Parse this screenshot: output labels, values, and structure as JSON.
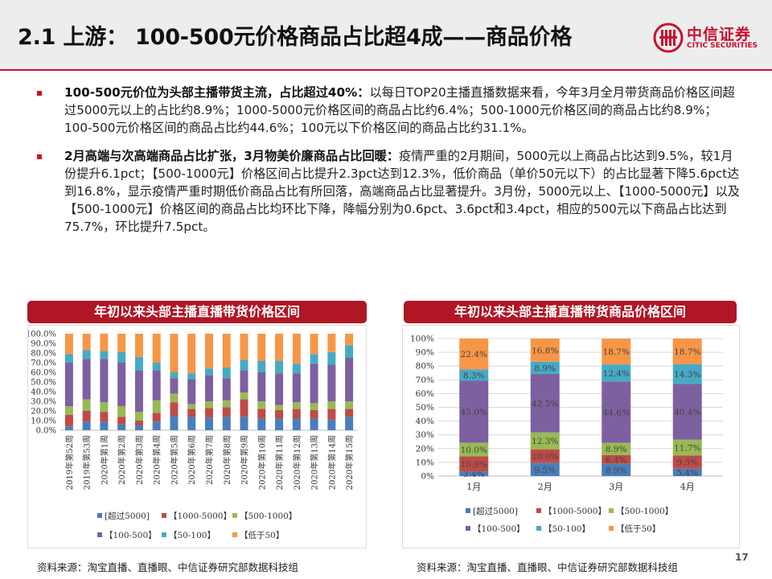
{
  "header": {
    "title": "2.1 上游： 100-500元价格商品占比超4成——商品价格",
    "logo_zh": "中信证券",
    "logo_en": "CITIC SECURITIES"
  },
  "bullets": [
    {
      "bold": "100-500元价位为头部主播带货主流，占比超过40%：",
      "text": "以每日TOP20主播直播数据来看，今年3月全月带货商品价格区间超过5000元以上的占比约8.9%；1000-5000元价格区间的商品占比约6.4%；500-1000元价格区间的商品占比约8.9%；100-500元价格区间的商品占比约44.6%；100元以下价格区间的商品占比约31.1%。"
    },
    {
      "bold": "2月高端与次高端商品占比扩张，3月物美价廉商品占比回暖：",
      "text": "疫情严重的2月期间，5000元以上商品占比达到9.5%，较1月份提升6.1pct；【500-1000元】价格区间占比提升2.3pct达到12.3%，低价商品（单价50元以下）的占比显著下降5.6pct达到16.8%，显示疫情严重时期低价商品占比有所回落，高端商品占比显著提升。3月份，5000元以上、【1000-5000元】以及【500-1000元】价格区间的商品占比均环比下降，降幅分别为0.6pct、3.6pct和3.4pct，相应的500元以下商品占比达到75.7%，环比提升7.5pct。"
    }
  ],
  "colors": {
    "brand": "#c8102e",
    "title_bar": "#b01624",
    "series": [
      "#4a7ebb",
      "#be4b48",
      "#98b954",
      "#7d60a0",
      "#46aac5",
      "#f79646"
    ]
  },
  "chart_left": {
    "title": "年初以来头部主播直播带货价格区间",
    "source": "资料来源：淘宝直播、直播眼、中信证券研究部数据科技组"
  },
  "chart_right": {
    "title": "年初以来头部主播直播带货商品价格区间",
    "source": "资料来源：淘宝直播、直播眼、中信证券研究部数据科技组"
  },
  "page_number": "17",
  "chart_data": [
    {
      "type": "bar",
      "stacked": true,
      "title": "年初以来头部主播直播带货价格区间",
      "categories": [
        "2019年第52周",
        "2019年第53周",
        "2020年第1周",
        "2020年第2周",
        "2020年第3周",
        "2020年第4周",
        "2020年第5周",
        "2020年第6周",
        "2020年第7周",
        "2020年第8周",
        "2020年第9周",
        "2020年第10周",
        "2020年第11周",
        "2020年第12周",
        "2020年第13周",
        "2020年第14周",
        "2020年第15周"
      ],
      "series": [
        {
          "name": "[超过5000]",
          "values": [
            4,
            9,
            9,
            6,
            5,
            9,
            15,
            14,
            13,
            14,
            14,
            12,
            12,
            12,
            12,
            11,
            14
          ]
        },
        {
          "name": "【1000-5000】",
          "values": [
            12,
            11,
            10,
            8,
            5,
            9,
            14,
            8,
            10,
            10,
            18,
            10,
            9,
            10,
            9,
            11,
            8
          ]
        },
        {
          "name": "【500-1000】",
          "values": [
            9,
            12,
            10,
            11,
            9,
            13,
            9,
            5,
            7,
            7,
            7,
            8,
            5,
            7,
            7,
            8,
            8
          ]
        },
        {
          "name": "【100-500】",
          "values": [
            45,
            42,
            45,
            45,
            43,
            31,
            16,
            26,
            27,
            23,
            23,
            30,
            33,
            30,
            41,
            38,
            45
          ]
        },
        {
          "name": "【50-100】",
          "values": [
            9,
            9,
            8,
            11,
            14,
            8,
            6,
            6,
            7,
            11,
            11,
            12,
            13,
            10,
            10,
            13,
            13
          ]
        },
        {
          "name": "【低于50】",
          "values": [
            21,
            17,
            18,
            19,
            24,
            30,
            40,
            41,
            36,
            35,
            27,
            28,
            28,
            31,
            21,
            19,
            12
          ]
        }
      ],
      "yticks": [
        "0.0%",
        "10.0%",
        "20.0%",
        "30.0%",
        "40.0%",
        "50.0%",
        "60.0%",
        "70.0%",
        "80.0%",
        "90.0%",
        "100.0%"
      ],
      "ylim": [
        0,
        100
      ],
      "legend": "bottom"
    },
    {
      "type": "bar",
      "stacked": true,
      "title": "年初以来头部主播直播带货商品价格区间",
      "categories": [
        "1月",
        "2月",
        "3月",
        "4月"
      ],
      "series": [
        {
          "name": "[超过5000]",
          "values": [
            3.4,
            9.5,
            8.9,
            5.4
          ],
          "labels": [
            "3.4%",
            "9.5%",
            "8.9%",
            "5.4%"
          ]
        },
        {
          "name": "【1000-5000】",
          "values": [
            10.9,
            10.0,
            6.4,
            9.5
          ],
          "labels": [
            "10.9%",
            "10.0%",
            "6.4%",
            "9.5%"
          ]
        },
        {
          "name": "【500-1000】",
          "values": [
            10.0,
            12.3,
            8.9,
            11.7
          ],
          "labels": [
            "10.0%",
            "12.3%",
            "8.9%",
            "11.7%"
          ]
        },
        {
          "name": "【100-500】",
          "values": [
            45.0,
            42.5,
            44.6,
            40.4
          ],
          "labels": [
            "45.0%",
            "42.5%",
            "44.6%",
            "40.4%"
          ]
        },
        {
          "name": "【50-100】",
          "values": [
            8.3,
            8.9,
            12.4,
            14.3
          ],
          "labels": [
            "8.3%",
            "8.9%",
            "12.4%",
            "14.3%"
          ]
        },
        {
          "name": "【低于50】",
          "values": [
            22.4,
            16.8,
            18.7,
            18.7
          ],
          "labels": [
            "22.4%",
            "16.8%",
            "18.7%",
            "18.7%"
          ]
        }
      ],
      "yticks": [
        "0%",
        "10%",
        "20%",
        "30%",
        "40%",
        "50%",
        "60%",
        "70%",
        "80%",
        "90%",
        "100%"
      ],
      "ylim": [
        0,
        100
      ],
      "legend": "bottom"
    }
  ]
}
